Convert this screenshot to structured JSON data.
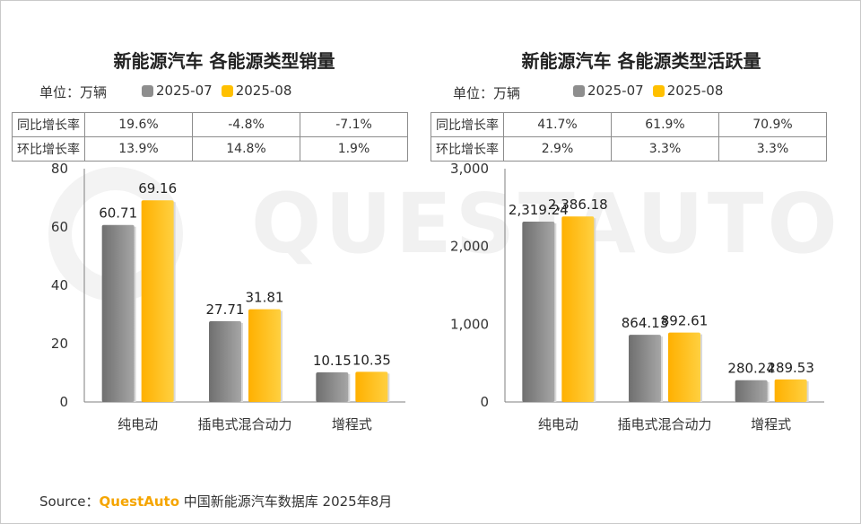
{
  "colors": {
    "prev": "#8e8e8e",
    "curr": "#ffc000",
    "brand": "#f5a500"
  },
  "watermark": "QUESTAUTO",
  "legend": {
    "prev": "2025-07",
    "curr": "2025-08"
  },
  "source": {
    "prefix": "Source：",
    "brand": "QuestAuto",
    "suffix": " 中国新能源汽车数据库 2025年8月"
  },
  "chart_data": [
    {
      "type": "bar",
      "title": "新能源汽车 各能源类型销量",
      "unit": "单位：万辆",
      "categories": [
        "纯电动",
        "插电式混合动力",
        "增程式"
      ],
      "series": [
        {
          "name": "2025-07",
          "values": [
            60.71,
            27.71,
            10.15
          ],
          "labels": [
            "60.71",
            "27.71",
            "10.15"
          ]
        },
        {
          "name": "2025-08",
          "values": [
            69.16,
            31.81,
            10.35
          ],
          "labels": [
            "69.16",
            "31.81",
            "10.35"
          ]
        }
      ],
      "ylim": [
        0,
        80
      ],
      "yticks": [
        0,
        20,
        40,
        60,
        80
      ],
      "ytick_labels": [
        "0",
        "20",
        "40",
        "60",
        "80"
      ],
      "growth_table": [
        {
          "label": "同比增长率",
          "values": [
            "19.6%",
            "-4.8%",
            "-7.1%"
          ]
        },
        {
          "label": "环比增长率",
          "values": [
            "13.9%",
            "14.8%",
            "1.9%"
          ]
        }
      ]
    },
    {
      "type": "bar",
      "title": "新能源汽车 各能源类型活跃量",
      "unit": "单位：万辆",
      "categories": [
        "纯电动",
        "插电式混合动力",
        "增程式"
      ],
      "series": [
        {
          "name": "2025-07",
          "values": [
            2319.24,
            864.13,
            280.24
          ],
          "labels": [
            "2,319.24",
            "864.13",
            "280.24"
          ]
        },
        {
          "name": "2025-08",
          "values": [
            2386.18,
            892.61,
            289.53
          ],
          "labels": [
            "2,386.18",
            "892.61",
            "289.53"
          ]
        }
      ],
      "ylim": [
        0,
        3000
      ],
      "yticks": [
        0,
        1000,
        2000,
        3000
      ],
      "ytick_labels": [
        "0",
        "1,000",
        "2,000",
        "3,000"
      ],
      "growth_table": [
        {
          "label": "同比增长率",
          "values": [
            "41.7%",
            "61.9%",
            "70.9%"
          ]
        },
        {
          "label": "环比增长率",
          "values": [
            "2.9%",
            "3.3%",
            "3.3%"
          ]
        }
      ]
    }
  ]
}
